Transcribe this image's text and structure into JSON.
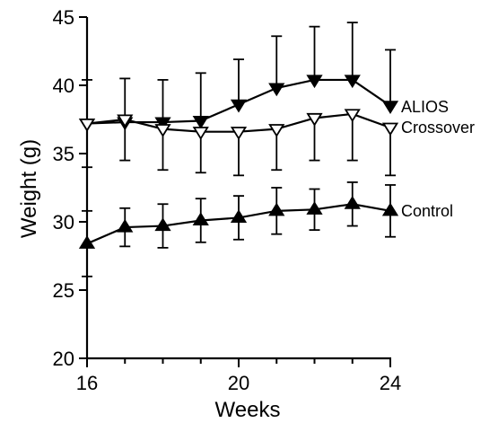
{
  "chart_data": {
    "type": "line",
    "title": "",
    "xlabel": "Weeks",
    "ylabel": "Weight (g)",
    "xlim": [
      16,
      24
    ],
    "ylim": [
      20,
      45
    ],
    "xticks": [
      16,
      20,
      24
    ],
    "yticks": [
      20,
      25,
      30,
      35,
      40,
      45
    ],
    "grid": false,
    "legend": "inline labels at right end of each line",
    "x": [
      16,
      17,
      18,
      19,
      20,
      21,
      22,
      23,
      24
    ],
    "series": [
      {
        "name": "ALIOS",
        "marker": "filled-down-triangle",
        "error_bars": "upper",
        "color": "#000000",
        "values": [
          37.2,
          37.3,
          37.3,
          37.4,
          38.6,
          39.8,
          40.4,
          40.4,
          38.5
        ],
        "errors": [
          3.2,
          3.2,
          3.1,
          3.5,
          3.3,
          3.8,
          3.9,
          4.2,
          4.1
        ]
      },
      {
        "name": "Crossover",
        "marker": "open-down-triangle",
        "error_bars": "lower",
        "color": "#000000",
        "values": [
          37.2,
          37.5,
          36.8,
          36.6,
          36.6,
          36.8,
          37.6,
          37.9,
          36.9
        ],
        "errors": [
          3.2,
          3.0,
          3.0,
          3.0,
          3.2,
          3.0,
          3.1,
          3.4,
          3.5
        ]
      },
      {
        "name": "Control",
        "marker": "filled-up-triangle",
        "error_bars": "both",
        "color": "#000000",
        "values": [
          28.4,
          29.6,
          29.7,
          30.1,
          30.3,
          30.8,
          30.9,
          31.3,
          30.8
        ],
        "errors": [
          2.4,
          1.4,
          1.6,
          1.6,
          1.6,
          1.7,
          1.5,
          1.6,
          1.9
        ]
      }
    ]
  }
}
